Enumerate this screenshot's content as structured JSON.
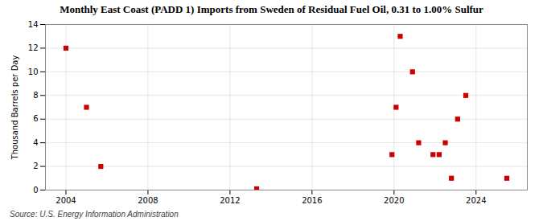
{
  "chart_data": {
    "type": "scatter",
    "title": "Monthly East Coast (PADD 1) Imports from Sweden of Residual Fuel Oil, 0.31 to 1.00% Sulfur",
    "y_label": "Thousand Barrels per Day",
    "source": "Source: U.S. Energy Information Administration",
    "x": [
      2004.0,
      2005.0,
      2005.7,
      2013.3,
      2019.9,
      2020.1,
      2020.3,
      2020.9,
      2021.2,
      2021.9,
      2022.2,
      2022.5,
      2022.8,
      2023.1,
      2023.5,
      2025.5
    ],
    "values": [
      12,
      7,
      2,
      0.1,
      3,
      7,
      13,
      10,
      4,
      3,
      3,
      4,
      1,
      6,
      8,
      1
    ],
    "color": "#cc0000",
    "marker": "square",
    "xlim": [
      2003.0,
      2026.5
    ],
    "ylim": [
      0,
      14
    ],
    "xticks": [
      2004,
      2008,
      2012,
      2016,
      2020,
      2024
    ],
    "yticks": [
      0,
      2,
      4,
      6,
      8,
      10,
      12,
      14
    ],
    "grid": true
  }
}
